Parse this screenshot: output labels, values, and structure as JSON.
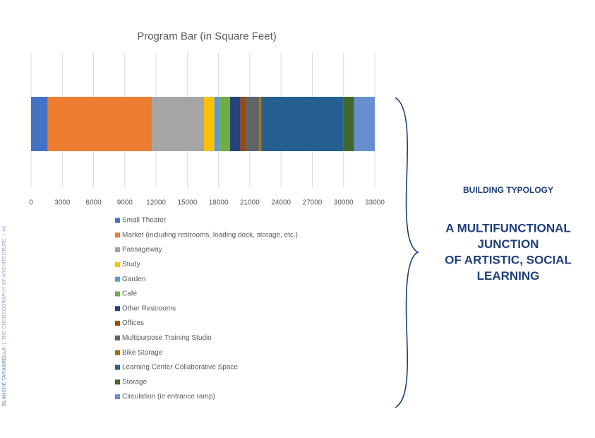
{
  "chart_data": {
    "type": "stacked_bar",
    "orientation": "horizontal",
    "title": "Program Bar (in Square Feet)",
    "categories": [
      null
    ],
    "series": [
      {
        "name": "Small Theater",
        "color": "#4472c4",
        "values": [
          1600
        ]
      },
      {
        "name": "Market (including restrooms, loading dock, storage, etc.)",
        "color": "#ed7d31",
        "values": [
          10000
        ]
      },
      {
        "name": "Passageway",
        "color": "#a5a5a5",
        "values": [
          5000
        ]
      },
      {
        "name": "Study",
        "color": "#ffc000",
        "values": [
          1000
        ]
      },
      {
        "name": "Garden",
        "color": "#5b9bd5",
        "values": [
          500
        ]
      },
      {
        "name": "Café",
        "color": "#70ad47",
        "values": [
          1000
        ]
      },
      {
        "name": "Other Restrooms",
        "color": "#264478",
        "values": [
          1000
        ]
      },
      {
        "name": "Offices",
        "color": "#9e480e",
        "values": [
          500
        ]
      },
      {
        "name": "Multipurpose Training Studio",
        "color": "#636363",
        "values": [
          1300
        ]
      },
      {
        "name": "Bike Storage",
        "color": "#997300",
        "values": [
          200
        ]
      },
      {
        "name": "Learning Center Collaborative Space",
        "color": "#255e91",
        "values": [
          7900
        ]
      },
      {
        "name": "Storage",
        "color": "#43682b",
        "values": [
          1000
        ]
      },
      {
        "name": "Circulation (ie entrance ramp)",
        "color": "#698ed0",
        "values": [
          2000
        ]
      }
    ],
    "xlim": [
      0,
      33000
    ],
    "xticks": [
      0,
      3000,
      6000,
      9000,
      12000,
      15000,
      18000,
      21000,
      24000,
      27000,
      30000,
      33000
    ],
    "grid": true,
    "legend": "bottom"
  },
  "typology": {
    "heading": "BUILDING TYPOLOGY",
    "statement": [
      "A MULTIFUNCTIONAL",
      "JUNCTION",
      "OF ARTISTIC, SOCIAL",
      "LEARNING"
    ]
  },
  "side_text": {
    "author": "BLANCHE TARABRELLA",
    "book": "THE CHOREOGRAPHY OF ARCHITECTURE",
    "page": "44"
  }
}
